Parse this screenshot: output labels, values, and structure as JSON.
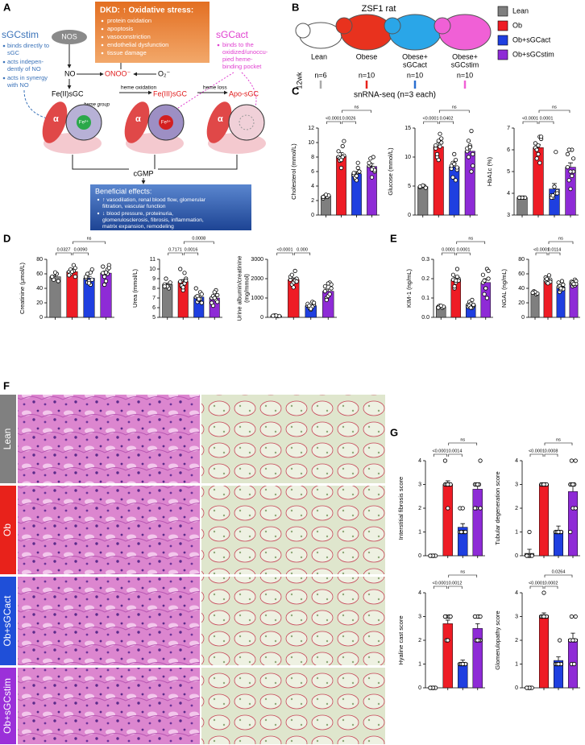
{
  "panel_letters": [
    "A",
    "B",
    "C",
    "D",
    "E",
    "F",
    "G"
  ],
  "diagram": {
    "stim": {
      "name": "sGCstim",
      "bullets": [
        [
          "binds directly to",
          "sGC"
        ],
        [
          "acts indepen-",
          "dently of NO"
        ],
        [
          "acts in synergy",
          "with NO"
        ]
      ]
    },
    "nos": "NOS",
    "no": "NO",
    "peroxynitrite": "ONOO⁻",
    "superoxide": "O₂⁻",
    "stress": {
      "title": "DKD: ↑ Oxidative stress:",
      "bullets": [
        "protein oxidation",
        "apoptosis",
        "vasoconstriction",
        "endothelial dysfunction",
        "tissue damage"
      ]
    },
    "act": {
      "name": "sGCact",
      "lines": [
        "binds to the",
        "oxidized/unoccu-",
        "pied heme-",
        "binding pocket"
      ]
    },
    "states": [
      "Fe(II)sGC",
      "Fe(III)sGC",
      "Apo-sGC"
    ],
    "steps": [
      "heme oxidation",
      "heme loss"
    ],
    "heme": "heme group",
    "subunit": "α",
    "metals": [
      "Fe²⁺",
      "Fe³⁺"
    ],
    "product": "cGMP",
    "effects": {
      "title": "Beneficial effects:",
      "bullets": [
        [
          "↑ vasodilation, renal blood flow, glomerular",
          "filtration, vascular function"
        ],
        [
          "↓ blood pressure, proteinuria,",
          "glomerulosclerosis, fibrosis, inflammation,",
          "matrix expansion, remodeling"
        ]
      ]
    }
  },
  "study": {
    "title": "ZSF1 rat",
    "groups": [
      [
        "Lean"
      ],
      [
        "Obese"
      ],
      [
        "Obese+",
        "sGCact"
      ],
      [
        "Obese+",
        "sGCstim"
      ]
    ],
    "age": "12wk",
    "n": [
      "n=6",
      "n=10",
      "n=10",
      "n=10"
    ],
    "assay": "snRNA-seq (n=3 each)",
    "legend": [
      {
        "label": "Lean",
        "color": "#7f7f7f"
      },
      {
        "label": "Ob",
        "color": "#ee1c25"
      },
      {
        "label": "Ob+sGCact",
        "color": "#1f3fe0"
      },
      {
        "label": "Ob+sGCstim",
        "color": "#8e2bd6"
      }
    ]
  },
  "histology": {
    "rows": [
      {
        "label": "Lean",
        "color": "#808080"
      },
      {
        "label": "Ob",
        "color": "#e8221b"
      },
      {
        "label": "Ob+sGCact",
        "color": "#1f4fd8"
      },
      {
        "label": "Ob+sGCstim",
        "color": "#9b30d9"
      }
    ]
  },
  "chart_data": [
    {
      "type": "bar",
      "ylabel": [
        "Cholesterol (mmol/L)"
      ],
      "categories": [
        null,
        null,
        null,
        null
      ],
      "colors": [
        "#7f7f7f",
        "#ee1c25",
        "#1f3fe0",
        "#8e2bd6"
      ],
      "values": [
        2.6,
        8.1,
        5.7,
        6.7
      ],
      "errors": [
        0.1,
        0.5,
        0.3,
        0.4
      ],
      "points": [
        [
          2.3,
          2.5,
          2.6,
          2.7,
          2.8,
          2.5
        ],
        [
          8.0,
          9.5,
          7.8,
          8.2,
          6.5,
          8.8,
          8.0,
          7.5,
          10.2,
          7.6
        ],
        [
          5.5,
          6.5,
          5.0,
          6.0,
          4.8,
          5.8,
          7.2,
          5.2,
          6.0,
          5.4
        ],
        [
          6.8,
          8.0,
          7.0,
          6.0,
          5.2,
          7.2,
          6.5,
          7.8,
          6.2,
          6.3
        ]
      ],
      "ylim": [
        0,
        12
      ],
      "yticks": [
        0,
        2,
        4,
        6,
        8,
        10,
        12
      ],
      "comparisons": [
        "<0.0001",
        "0.0026",
        "ns"
      ]
    },
    {
      "type": "bar",
      "ylabel": [
        "Glucose (mmol/L)"
      ],
      "categories": [
        null,
        null,
        null,
        null
      ],
      "colors": [
        "#7f7f7f",
        "#ee1c25",
        "#1f3fe0",
        "#8e2bd6"
      ],
      "values": [
        4.9,
        11.8,
        8.3,
        11.0
      ],
      "errors": [
        0.1,
        0.7,
        0.6,
        0.8
      ],
      "points": [
        [
          4.8,
          5.0,
          4.9,
          4.7,
          5.1,
          4.9
        ],
        [
          11.5,
          14.0,
          10.0,
          12.5,
          9.5,
          12.0,
          11.8,
          10.5,
          13.2,
          12.8
        ],
        [
          8.0,
          9.5,
          6.5,
          7.8,
          10.5,
          8.5,
          6.0,
          9.0,
          8.2,
          8.8
        ],
        [
          11.0,
          14.5,
          10.0,
          8.5,
          12.0,
          11.5,
          7.5,
          12.8,
          10.5,
          11.7
        ]
      ],
      "ylim": [
        0,
        15
      ],
      "yticks": [
        0,
        5,
        10,
        15
      ],
      "comparisons": [
        "<0.0001",
        "0.0402",
        "ns"
      ]
    },
    {
      "type": "bar",
      "ylabel": [
        "HbA1c (%)"
      ],
      "categories": [
        null,
        null,
        null,
        null
      ],
      "colors": [
        "#7f7f7f",
        "#ee1c25",
        "#1f3fe0",
        "#8e2bd6"
      ],
      "values": [
        3.8,
        6.1,
        4.2,
        5.2
      ],
      "errors": [
        0.02,
        0.15,
        0.25,
        0.2
      ],
      "points": [
        [
          3.8,
          3.8,
          3.8,
          3.8,
          3.8,
          3.8
        ],
        [
          6.1,
          6.6,
          5.6,
          6.5,
          5.8,
          6.3,
          5.4,
          6.0,
          6.6,
          6.2
        ],
        [
          3.9,
          4.0,
          3.8,
          4.1,
          4.3,
          3.8,
          5.9,
          3.9,
          4.0,
          4.3
        ],
        [
          5.2,
          6.0,
          4.6,
          5.6,
          4.2,
          5.8,
          4.8,
          6.0,
          5.0,
          5.0
        ]
      ],
      "ylim": [
        3,
        7
      ],
      "yticks": [
        3,
        4,
        5,
        6,
        7
      ],
      "comparisons": [
        "<0.0001",
        "0.0001",
        "ns"
      ]
    },
    {
      "type": "bar",
      "ylabel": [
        "Creatinine (μmol/L)"
      ],
      "categories": [
        null,
        null,
        null,
        null
      ],
      "colors": [
        "#7f7f7f",
        "#ee1c25",
        "#1f3fe0",
        "#8e2bd6"
      ],
      "values": [
        56,
        63,
        54,
        61
      ],
      "errors": [
        2,
        1.5,
        2.5,
        3
      ],
      "points": [
        [
          56,
          60,
          52,
          50,
          62,
          56
        ],
        [
          63,
          72,
          60,
          68,
          65,
          58,
          64,
          66,
          56,
          63
        ],
        [
          54,
          62,
          48,
          66,
          50,
          56,
          45,
          60,
          52,
          47
        ],
        [
          61,
          66,
          56,
          72,
          50,
          70,
          60,
          45,
          68,
          62
        ]
      ],
      "ylim": [
        0,
        80
      ],
      "yticks": [
        0,
        20,
        40,
        60,
        80
      ],
      "comparisons": [
        "0.0327",
        "0.0090",
        "ns"
      ]
    },
    {
      "type": "bar",
      "ylabel": [
        "Urea (mmol/L)"
      ],
      "categories": [
        null,
        null,
        null,
        null
      ],
      "colors": [
        "#7f7f7f",
        "#ee1c25",
        "#1f3fe0",
        "#8e2bd6"
      ],
      "values": [
        8.4,
        8.7,
        7.1,
        7.0
      ],
      "errors": [
        0.15,
        0.2,
        0.15,
        0.15
      ],
      "points": [
        [
          8.4,
          8.0,
          9.0,
          8.6,
          8.2,
          8.2
        ],
        [
          8.7,
          9.6,
          8.2,
          9.0,
          7.8,
          10.0,
          8.5,
          8.3,
          8.8,
          8.1
        ],
        [
          7.1,
          7.6,
          6.6,
          7.4,
          6.8,
          8.0,
          6.9,
          7.2,
          6.5,
          6.9
        ],
        [
          7.0,
          7.8,
          6.2,
          7.3,
          7.6,
          6.5,
          6.8,
          7.2,
          6.6,
          7.0
        ]
      ],
      "ylim": [
        5,
        11
      ],
      "yticks": [
        5,
        6,
        7,
        8,
        9,
        10,
        11
      ],
      "comparisons": [
        "0.7171",
        "0.0016",
        "0.0008"
      ]
    },
    {
      "type": "bar",
      "ylabel": [
        "Urine albumin/creatinine",
        "(mg/mmol)"
      ],
      "categories": [
        null,
        null,
        null,
        null
      ],
      "colors": [
        "#7f7f7f",
        "#ee1c25",
        "#1f3fe0",
        "#8e2bd6"
      ],
      "values": [
        80,
        1950,
        600,
        1350
      ],
      "errors": [
        10,
        90,
        45,
        110
      ],
      "points": [
        [
          80,
          60,
          100,
          70,
          90,
          80
        ],
        [
          1950,
          2400,
          1700,
          2000,
          1800,
          2100,
          1900,
          2200,
          1850,
          1550
        ],
        [
          600,
          800,
          500,
          650,
          400,
          700,
          550,
          600,
          750,
          450
        ],
        [
          1350,
          1800,
          1000,
          1500,
          1100,
          1600,
          1200,
          900,
          1700,
          1750
        ]
      ],
      "ylim": [
        0,
        3000
      ],
      "yticks": [
        0,
        1000,
        2000,
        3000
      ],
      "comparisons": [
        "<0.0001",
        "0.000"
      ]
    },
    {
      "type": "bar",
      "ylabel": [
        "KIM-1 (ng/mL)"
      ],
      "categories": [
        null,
        null,
        null,
        null
      ],
      "colors": [
        "#7f7f7f",
        "#ee1c25",
        "#1f3fe0",
        "#8e2bd6"
      ],
      "values": [
        0.055,
        0.195,
        0.065,
        0.18
      ],
      "errors": [
        0.003,
        0.012,
        0.005,
        0.02
      ],
      "points": [
        [
          0.055,
          0.05,
          0.06,
          0.055,
          0.06,
          0.05
        ],
        [
          0.195,
          0.25,
          0.15,
          0.2,
          0.18,
          0.22,
          0.21,
          0.16,
          0.19,
          0.19
        ],
        [
          0.065,
          0.05,
          0.08,
          0.06,
          0.07,
          0.055,
          0.09,
          0.06,
          0.065,
          0.05
        ],
        [
          0.18,
          0.25,
          0.12,
          0.2,
          0.15,
          0.22,
          0.1,
          0.19,
          0.24,
          0.15
        ]
      ],
      "ylim": [
        0,
        0.3
      ],
      "yticks": [
        {
          "value": 0,
          "label": "0.0"
        },
        0.1,
        0.2,
        0.3
      ],
      "comparisons": [
        "0.0001",
        "0.0001",
        "ns"
      ]
    },
    {
      "type": "bar",
      "ylabel": [
        "NGAL (ng/mL)"
      ],
      "categories": [
        null,
        null,
        null,
        null
      ],
      "colors": [
        "#7f7f7f",
        "#ee1c25",
        "#1f3fe0",
        "#8e2bd6"
      ],
      "values": [
        34,
        51,
        42,
        47
      ],
      "errors": [
        1,
        2.5,
        2,
        1.5
      ],
      "points": [
        [
          34,
          32,
          36,
          33,
          35,
          34
        ],
        [
          51,
          58,
          48,
          52,
          47,
          55,
          50,
          53,
          49,
          47
        ],
        [
          42,
          50,
          35,
          45,
          38,
          48,
          40,
          43,
          39,
          40
        ],
        [
          47,
          52,
          43,
          50,
          45,
          49,
          44,
          48,
          46,
          46
        ]
      ],
      "ylim": [
        0,
        80
      ],
      "yticks": [
        0,
        20,
        40,
        60,
        80
      ],
      "comparisons": [
        "<0.0001",
        "0.0114",
        "ns"
      ]
    },
    {
      "type": "bar",
      "ylabel": [
        "Interstitial fibrosis score"
      ],
      "categories": [
        null,
        null,
        null,
        null
      ],
      "colors": [
        "#7f7f7f",
        "#ee1c25",
        "#1f3fe0",
        "#8e2bd6"
      ],
      "values": [
        0.0,
        3.0,
        1.2,
        2.8
      ],
      "errors": [
        0,
        0.15,
        0.15,
        0.2
      ],
      "points": [
        [
          0,
          0,
          0,
          0,
          0,
          0
        ],
        [
          3,
          3,
          3,
          3,
          2,
          4,
          3,
          3,
          3,
          3
        ],
        [
          1,
          1,
          1,
          1,
          1,
          2,
          1,
          1,
          1,
          2
        ],
        [
          3,
          3,
          2,
          4,
          3,
          2,
          3,
          3,
          2,
          3
        ]
      ],
      "ylim": [
        0,
        4
      ],
      "yticks": [
        0,
        1,
        2,
        3,
        4
      ],
      "comparisons": [
        "<0.0001",
        "0.0014",
        "ns"
      ]
    },
    {
      "type": "bar",
      "ylabel": [
        "Tubular degeneration score"
      ],
      "categories": [
        null,
        null,
        null,
        null
      ],
      "colors": [
        "#7f7f7f",
        "#ee1c25",
        "#1f3fe0",
        "#8e2bd6"
      ],
      "values": [
        0.1,
        3.0,
        1.05,
        2.7
      ],
      "errors": [
        0.17,
        0,
        0.2,
        0.3
      ],
      "points": [
        [
          0,
          0,
          0,
          0,
          1,
          0
        ],
        [
          3,
          3,
          3,
          3,
          3,
          3,
          3,
          3,
          3,
          3
        ],
        [
          1,
          1,
          1,
          1,
          1,
          1,
          1,
          1,
          1,
          1
        ],
        [
          3,
          3,
          4,
          4,
          2,
          1,
          3,
          3,
          2,
          3
        ]
      ],
      "ylim": [
        0,
        4
      ],
      "yticks": [
        0,
        1,
        2,
        3,
        4
      ],
      "comparisons": [
        "<0.0001",
        "0.0008",
        "ns"
      ]
    },
    {
      "type": "bar",
      "ylabel": [
        "Hyaline cast score"
      ],
      "categories": [
        null,
        null,
        null,
        null
      ],
      "colors": [
        "#7f7f7f",
        "#ee1c25",
        "#1f3fe0",
        "#8e2bd6"
      ],
      "values": [
        0.0,
        2.7,
        1.05,
        2.5
      ],
      "errors": [
        0,
        0.15,
        0.12,
        0.2
      ],
      "points": [
        [
          0,
          0,
          0,
          0,
          0,
          0
        ],
        [
          3,
          3,
          3,
          3,
          2,
          3,
          3,
          2,
          3,
          2
        ],
        [
          1,
          1,
          1,
          1,
          1,
          1,
          1,
          1,
          1,
          1
        ],
        [
          3,
          3,
          2,
          2,
          3,
          3,
          2,
          2,
          3,
          2
        ]
      ],
      "ylim": [
        0,
        4
      ],
      "yticks": [
        0,
        1,
        2,
        3,
        4
      ],
      "comparisons": [
        "<0.0001",
        "0.0012",
        "ns"
      ]
    },
    {
      "type": "bar",
      "ylabel": [
        "Glomerulopathy score"
      ],
      "categories": [
        null,
        null,
        null,
        null
      ],
      "colors": [
        "#7f7f7f",
        "#ee1c25",
        "#1f3fe0",
        "#8e2bd6"
      ],
      "values": [
        0.0,
        3.05,
        1.15,
        2.05
      ],
      "errors": [
        0,
        0.1,
        0.15,
        0.25
      ],
      "points": [
        [
          0,
          0,
          0,
          0,
          0,
          0
        ],
        [
          3,
          3,
          3,
          3,
          4,
          3,
          3,
          3,
          3,
          3
        ],
        [
          1,
          1,
          1,
          1,
          1,
          1,
          2,
          1,
          1,
          1
        ],
        [
          2,
          2,
          1,
          3,
          2,
          2,
          1,
          3,
          2,
          2
        ]
      ],
      "ylim": [
        0,
        4
      ],
      "yticks": [
        0,
        1,
        2,
        3,
        4
      ],
      "comparisons": [
        "<0.0001",
        "0.0002",
        "0.0264"
      ]
    }
  ]
}
